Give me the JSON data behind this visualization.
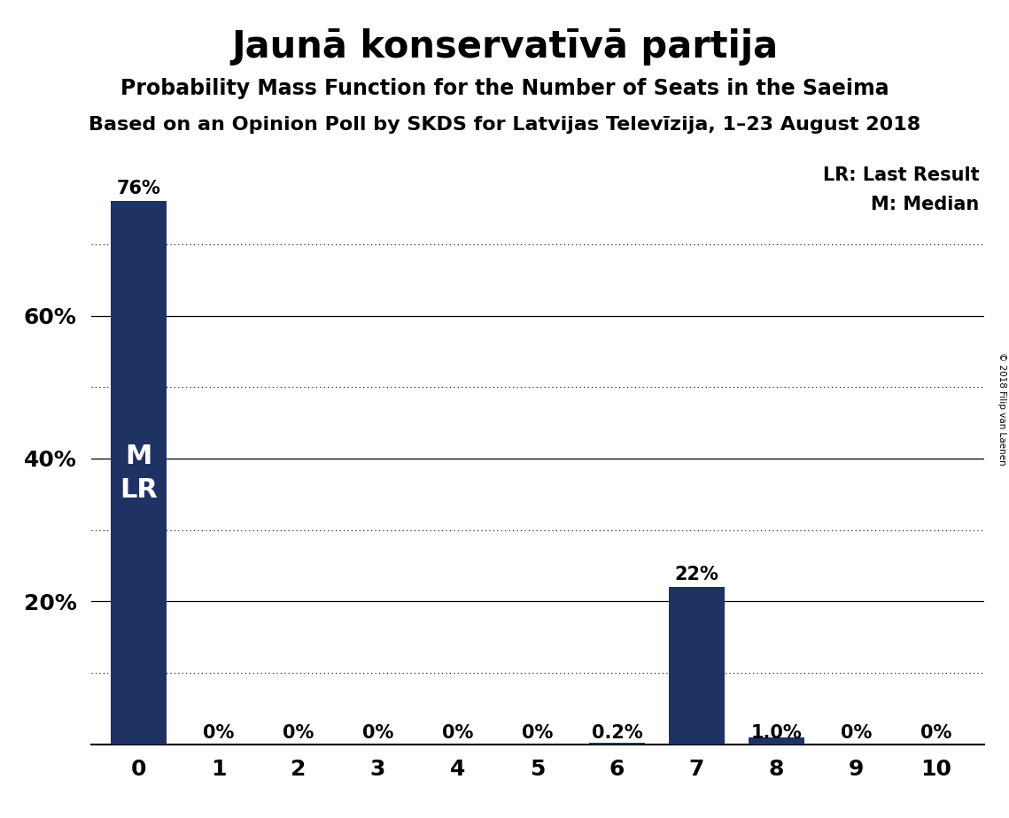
{
  "title": "Jaunā konservatīvā partija",
  "subtitle": "Probability Mass Function for the Number of Seats in the Saeima",
  "source": "Based on an Opinion Poll by SKDS for Latvijas Televīzija, 1–23 August 2018",
  "copyright": "© 2018 Filip van Laenen",
  "categories": [
    0,
    1,
    2,
    3,
    4,
    5,
    6,
    7,
    8,
    9,
    10
  ],
  "values": [
    0.76,
    0.0,
    0.0,
    0.0,
    0.0,
    0.0,
    0.002,
    0.22,
    0.01,
    0.0,
    0.0
  ],
  "bar_color": "#1F3264",
  "bar_labels": [
    "76%",
    "0%",
    "0%",
    "0%",
    "0%",
    "0%",
    "0.2%",
    "22%",
    "1.0%",
    "0%",
    "0%"
  ],
  "ylim": [
    0,
    0.83
  ],
  "yticks": [
    0.2,
    0.4,
    0.6
  ],
  "ytick_labels": [
    "20%",
    "40%",
    "60%"
  ],
  "grid_solid": [
    0.2,
    0.4,
    0.6
  ],
  "grid_dotted": [
    0.1,
    0.3,
    0.5,
    0.7
  ],
  "legend_line1": "LR: Last Result",
  "legend_line2": "M: Median",
  "median_bar": 0,
  "last_result_bar": 0,
  "background_color": "#FFFFFF",
  "title_fontsize": 30,
  "subtitle_fontsize": 17,
  "source_fontsize": 16
}
